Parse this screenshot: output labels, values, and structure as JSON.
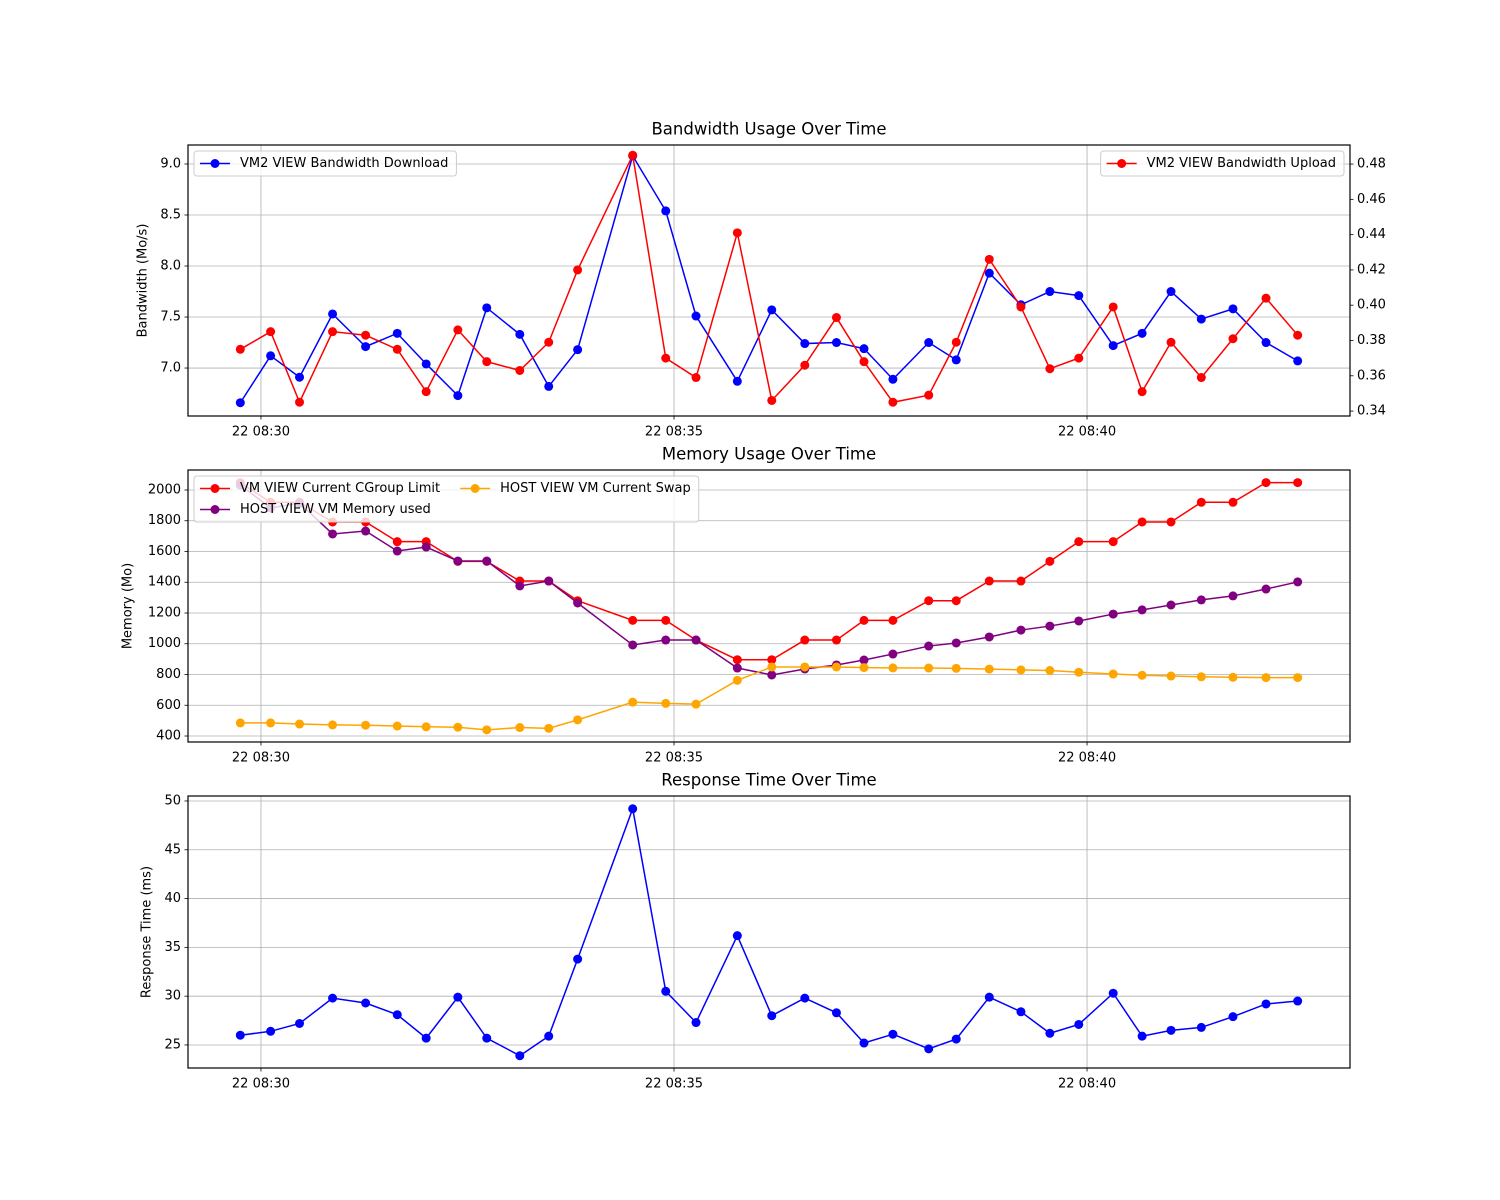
{
  "chart_data": [
    {
      "type": "line",
      "title": "Bandwidth Usage Over Time",
      "ylabel": "Bandwidth (Mo/s)",
      "x": [
        "22 08:29:45",
        "22 08:30:07",
        "22 08:30:28",
        "22 08:30:52",
        "22 08:31:16",
        "22 08:31:39",
        "22 08:32:00",
        "22 08:32:23",
        "22 08:32:44",
        "22 08:33:08",
        "22 08:33:29",
        "22 08:33:50",
        "22 08:34:30",
        "22 08:34:54",
        "22 08:35:16",
        "22 08:35:46",
        "22 08:36:11",
        "22 08:36:35",
        "22 08:36:58",
        "22 08:37:18",
        "22 08:37:39",
        "22 08:38:05",
        "22 08:38:25",
        "22 08:38:49",
        "22 08:39:12",
        "22 08:39:33",
        "22 08:39:54",
        "22 08:40:19",
        "22 08:40:40",
        "22 08:41:01",
        "22 08:41:23",
        "22 08:41:46",
        "22 08:42:10",
        "22 08:42:33"
      ],
      "xlim": [
        "22 08:29:07",
        "22 08:43:11"
      ],
      "xticks": [
        "22 08:30",
        "22 08:35",
        "22 08:40"
      ],
      "ylim": [
        6.53,
        9.186
      ],
      "yticks": [
        {
          "value": 7,
          "label": "7.0"
        },
        7.5,
        {
          "value": 8,
          "label": "8.0"
        },
        8.5,
        {
          "value": 9,
          "label": "9.0"
        }
      ],
      "y2lim": [
        0.3372,
        0.4908
      ],
      "y2ticks": [
        0.34,
        0.36,
        0.38,
        {
          "value": 0.4,
          "label": "0.40"
        },
        0.42,
        0.44,
        0.46,
        0.48
      ],
      "grid": true,
      "legend": "upper left",
      "y2_legend": "upper right",
      "series": [
        {
          "name": "VM2 VIEW Bandwidth Download",
          "color": "blue",
          "axis": "y",
          "values": [
            6.66,
            7.12,
            6.91,
            7.53,
            7.21,
            7.34,
            7.04,
            6.73,
            7.59,
            7.33,
            6.82,
            7.18,
            9.08,
            8.54,
            7.51,
            6.87,
            7.57,
            7.24,
            7.25,
            7.19,
            6.89,
            7.25,
            7.08,
            7.93,
            7.62,
            7.75,
            7.71,
            7.22,
            7.34,
            7.75,
            7.48,
            7.58,
            7.25,
            7.07
          ]
        },
        {
          "name": "VM2 VIEW Bandwidth Upload",
          "color": "red",
          "axis": "y2",
          "values": [
            0.375,
            0.385,
            0.345,
            0.385,
            0.383,
            0.375,
            0.351,
            0.386,
            0.368,
            0.363,
            0.379,
            0.42,
            0.485,
            0.37,
            0.359,
            0.441,
            0.346,
            0.366,
            0.393,
            0.368,
            0.345,
            0.349,
            0.379,
            0.426,
            0.399,
            0.364,
            0.37,
            0.399,
            0.351,
            0.379,
            0.359,
            0.381,
            0.404,
            0.383
          ]
        }
      ]
    },
    {
      "type": "line",
      "title": "Memory Usage Over Time",
      "ylabel": "Memory (Mo)",
      "x": [
        "22 08:29:45",
        "22 08:30:07",
        "22 08:30:28",
        "22 08:30:52",
        "22 08:31:16",
        "22 08:31:39",
        "22 08:32:00",
        "22 08:32:23",
        "22 08:32:44",
        "22 08:33:08",
        "22 08:33:29",
        "22 08:33:50",
        "22 08:34:30",
        "22 08:34:54",
        "22 08:35:16",
        "22 08:35:46",
        "22 08:36:11",
        "22 08:36:35",
        "22 08:36:58",
        "22 08:37:18",
        "22 08:37:39",
        "22 08:38:05",
        "22 08:38:25",
        "22 08:38:49",
        "22 08:39:12",
        "22 08:39:33",
        "22 08:39:54",
        "22 08:40:19",
        "22 08:40:40",
        "22 08:41:01",
        "22 08:41:23",
        "22 08:41:46",
        "22 08:42:10",
        "22 08:42:33"
      ],
      "xlim": [
        "22 08:29:07",
        "22 08:43:11"
      ],
      "xticks": [
        "22 08:30",
        "22 08:35",
        "22 08:40"
      ],
      "ylim": [
        361,
        2130
      ],
      "yticks": [
        400,
        600,
        800,
        1000,
        1200,
        1400,
        1600,
        1800,
        2000
      ],
      "grid": true,
      "legend": "upper left",
      "legend_columns": 2,
      "series": [
        {
          "name": "VM VIEW Current CGroup Limit",
          "color": "red",
          "values": [
            2048,
            1920,
            1920,
            1792,
            1792,
            1664,
            1664,
            1536,
            1536,
            1408,
            1408,
            1280,
            1152,
            1152,
            1024,
            896,
            896,
            1024,
            1024,
            1152,
            1152,
            1280,
            1280,
            1408,
            1408,
            1536,
            1664,
            1664,
            1792,
            1792,
            1920,
            1920,
            2048,
            2048
          ]
        },
        {
          "name": "HOST VIEW VM Memory used",
          "color": "purple",
          "values": [
            2032,
            1883,
            1915,
            1714,
            1733,
            1603,
            1629,
            1538,
            1538,
            1376,
            1408,
            1265,
            992,
            1024,
            1024,
            842,
            797,
            836,
            862,
            894,
            933,
            985,
            1005,
            1044,
            1089,
            1115,
            1148,
            1193,
            1220,
            1252,
            1285,
            1311,
            1356,
            1402
          ]
        },
        {
          "name": "HOST VIEW VM Current Swap",
          "color": "orange",
          "values": [
            485,
            485,
            478,
            472,
            470,
            465,
            460,
            457,
            440,
            455,
            450,
            505,
            620,
            612,
            607,
            762,
            849,
            849,
            849,
            845,
            843,
            842,
            840,
            835,
            830,
            826,
            815,
            803,
            795,
            790,
            785,
            782,
            780,
            780
          ]
        }
      ]
    },
    {
      "type": "line",
      "title": "Response Time Over Time",
      "ylabel": "Response Time (ms)",
      "x": [
        "22 08:29:45",
        "22 08:30:07",
        "22 08:30:28",
        "22 08:30:52",
        "22 08:31:16",
        "22 08:31:39",
        "22 08:32:00",
        "22 08:32:23",
        "22 08:32:44",
        "22 08:33:08",
        "22 08:33:29",
        "22 08:33:50",
        "22 08:34:30",
        "22 08:34:54",
        "22 08:35:16",
        "22 08:35:46",
        "22 08:36:11",
        "22 08:36:35",
        "22 08:36:58",
        "22 08:37:18",
        "22 08:37:39",
        "22 08:38:05",
        "22 08:38:25",
        "22 08:38:49",
        "22 08:39:12",
        "22 08:39:33",
        "22 08:39:54",
        "22 08:40:19",
        "22 08:40:40",
        "22 08:41:01",
        "22 08:41:23",
        "22 08:41:46",
        "22 08:42:10",
        "22 08:42:33"
      ],
      "xlim": [
        "22 08:29:07",
        "22 08:43:11"
      ],
      "xticks": [
        "22 08:30",
        "22 08:35",
        "22 08:40"
      ],
      "ylim": [
        22.64,
        50.51
      ],
      "yticks": [
        25,
        30,
        35,
        40,
        45,
        50
      ],
      "grid": true,
      "series": [
        {
          "color": "blue",
          "values": [
            26.0,
            26.4,
            27.2,
            29.8,
            29.3,
            28.1,
            25.7,
            29.9,
            25.7,
            23.9,
            25.9,
            33.8,
            49.2,
            30.5,
            27.3,
            36.2,
            28.0,
            29.8,
            28.3,
            25.2,
            26.1,
            24.6,
            25.6,
            29.9,
            28.4,
            26.2,
            27.1,
            30.3,
            25.9,
            26.5,
            26.8,
            27.9,
            29.2,
            29.5
          ]
        }
      ]
    }
  ]
}
